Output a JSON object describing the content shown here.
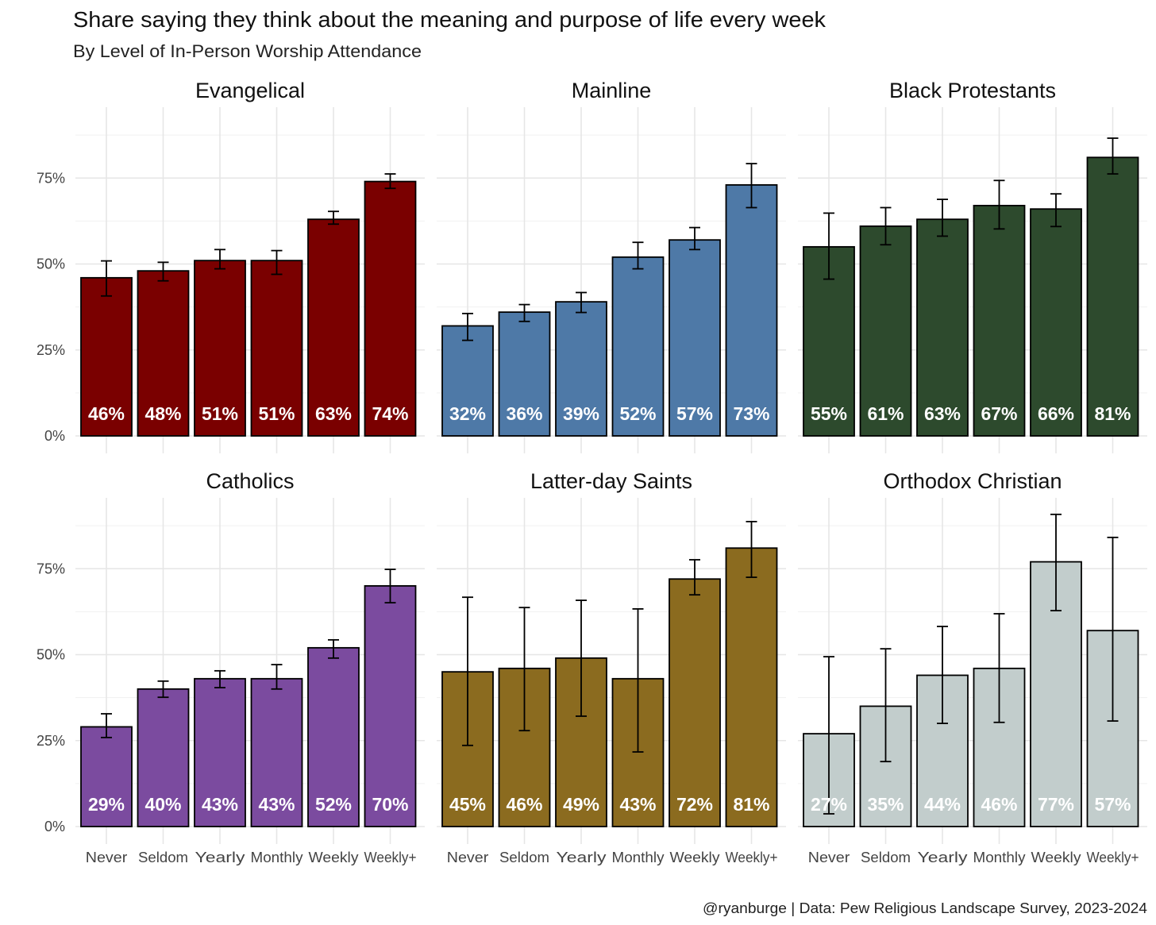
{
  "chart_data": {
    "type": "bar",
    "title": "Share saying they think about the meaning and purpose of life every week",
    "subtitle": "By Level of In-Person Worship Attendance",
    "caption": "@ryanburge | Data: Pew Religious Landscape Survey, 2023-2024",
    "xlabel": "",
    "ylabel": "",
    "ylim": [
      0,
      95
    ],
    "yticks": [
      0,
      25,
      50,
      75
    ],
    "ytick_labels": [
      "0%",
      "25%",
      "50%",
      "75%"
    ],
    "grid": true,
    "categories": [
      "Never",
      "Seldom",
      "Yearly",
      "Monthly",
      "Weekly",
      "Weekly+"
    ],
    "facets": [
      {
        "name": "Evangelical",
        "color": "#7a0000",
        "values": [
          46,
          48,
          51,
          51,
          63,
          74
        ],
        "labels": [
          "46%",
          "48%",
          "51%",
          "51%",
          "63%",
          "74%"
        ],
        "ci_low": [
          40.7,
          45.1,
          48.6,
          47.0,
          61.6,
          72.0
        ],
        "ci_high": [
          50.9,
          50.5,
          54.2,
          53.9,
          65.3,
          76.2
        ]
      },
      {
        "name": "Mainline",
        "color": "#4e79a7",
        "values": [
          32,
          36,
          39,
          52,
          57,
          73
        ],
        "labels": [
          "32%",
          "36%",
          "39%",
          "52%",
          "57%",
          "73%"
        ],
        "ci_low": [
          27.8,
          33.3,
          35.9,
          48.6,
          54.2,
          66.4
        ],
        "ci_high": [
          35.6,
          38.2,
          41.7,
          56.3,
          60.6,
          79.2
        ]
      },
      {
        "name": "Black Protestants",
        "color": "#2d4a2d",
        "values": [
          55,
          61,
          63,
          67,
          66,
          81
        ],
        "labels": [
          "55%",
          "61%",
          "63%",
          "67%",
          "66%",
          "81%"
        ],
        "ci_low": [
          45.6,
          55.6,
          58.1,
          60.2,
          60.9,
          76.2
        ],
        "ci_high": [
          64.8,
          66.4,
          68.8,
          74.3,
          70.4,
          86.6
        ]
      },
      {
        "name": "Catholics",
        "color": "#7b4b9f",
        "values": [
          29,
          40,
          43,
          43,
          52,
          70
        ],
        "labels": [
          "29%",
          "40%",
          "43%",
          "43%",
          "52%",
          "70%"
        ],
        "ci_low": [
          25.9,
          37.6,
          40.4,
          40.0,
          49.0,
          65.1
        ],
        "ci_high": [
          32.8,
          42.3,
          45.3,
          47.1,
          54.3,
          74.8
        ]
      },
      {
        "name": "Latter-day Saints",
        "color": "#8b6b1f",
        "values": [
          45,
          46,
          49,
          43,
          72,
          81
        ],
        "labels": [
          "45%",
          "46%",
          "49%",
          "43%",
          "72%",
          "81%"
        ],
        "ci_low": [
          23.6,
          27.9,
          32.1,
          21.7,
          67.4,
          72.5
        ],
        "ci_high": [
          66.7,
          63.7,
          65.8,
          63.3,
          77.6,
          88.7
        ]
      },
      {
        "name": "Orthodox Christian",
        "color": "#c2cdcc",
        "values": [
          27,
          35,
          44,
          46,
          77,
          57
        ],
        "labels": [
          "27%",
          "35%",
          "44%",
          "46%",
          "77%",
          "57%"
        ],
        "ci_low": [
          3.7,
          18.9,
          30.0,
          30.3,
          62.8,
          30.7
        ],
        "ci_high": [
          49.4,
          51.7,
          58.2,
          61.9,
          90.8,
          84.1
        ]
      }
    ]
  }
}
